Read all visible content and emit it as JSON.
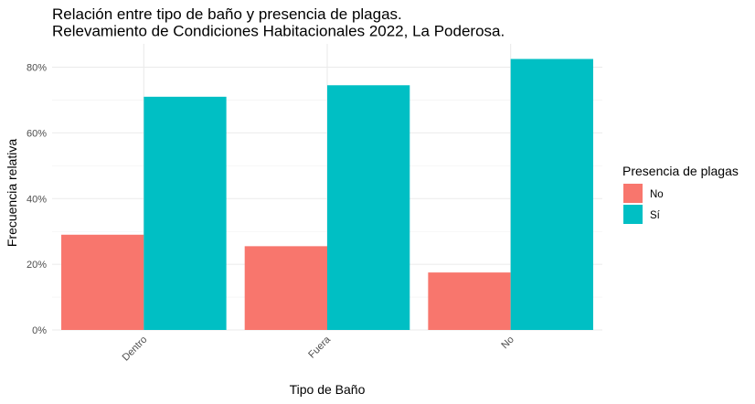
{
  "chart_data": {
    "type": "bar",
    "title": [
      "Relación entre tipo de baño y presencia de plagas.",
      "Relevamiento de Condiciones Habitacionales 2022, La Poderosa."
    ],
    "xlabel": "Tipo de Baño",
    "ylabel": "Frecuencia relativa",
    "categories": [
      "Dentro",
      "Fuera",
      "No"
    ],
    "series": [
      {
        "name": "No",
        "color": "#F8766D",
        "values": [
          0.29,
          0.255,
          0.175
        ]
      },
      {
        "name": "Sí",
        "color": "#00BFC4",
        "values": [
          0.71,
          0.745,
          0.825
        ]
      }
    ],
    "ylim": [
      0,
      0.85
    ],
    "yticks": [
      0,
      0.2,
      0.4,
      0.6,
      0.8
    ],
    "ytick_labels": [
      "0%",
      "20%",
      "40%",
      "60%",
      "80%"
    ],
    "legend": {
      "title": "Presencia de plagas",
      "placement": "right"
    },
    "grid": true
  }
}
